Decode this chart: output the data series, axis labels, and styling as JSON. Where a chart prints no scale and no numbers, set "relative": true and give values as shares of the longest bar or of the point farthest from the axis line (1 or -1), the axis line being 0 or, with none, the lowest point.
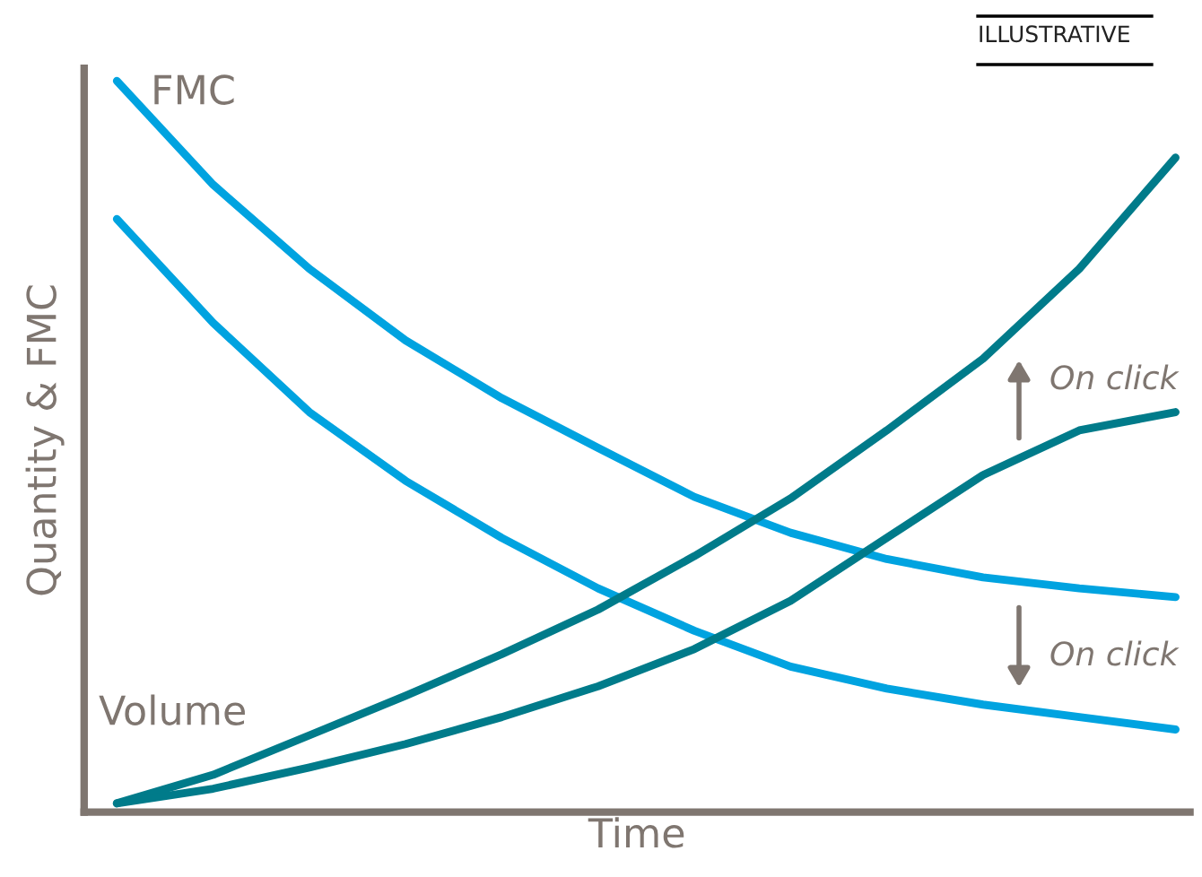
{
  "chart_data": {
    "type": "line",
    "relative": true,
    "xlabel": "Time",
    "ylabel": "Quantity & FMC",
    "categories": [
      null,
      null,
      null,
      null,
      null,
      null,
      null,
      null,
      null,
      null,
      null,
      null
    ],
    "series": [
      {
        "color": "#00a3e0",
        "values": [
          1.0,
          0.858,
          0.743,
          0.645,
          0.566,
          0.498,
          0.431,
          0.382,
          0.346,
          0.321,
          0.306,
          0.294
        ]
      },
      {
        "color": "#00a3e0",
        "values": [
          0.811,
          0.669,
          0.547,
          0.453,
          0.375,
          0.306,
          0.248,
          0.199,
          0.169,
          0.147,
          0.13,
          0.113
        ]
      },
      {
        "color": "#007b8a",
        "values": [
          0.012,
          0.051,
          0.105,
          0.159,
          0.216,
          0.277,
          0.35,
          0.429,
          0.522,
          0.62,
          0.743,
          0.895
        ]
      },
      {
        "color": "#007b8a",
        "values": [
          0.012,
          0.032,
          0.061,
          0.093,
          0.13,
          0.172,
          0.223,
          0.289,
          0.375,
          0.461,
          0.522,
          0.547
        ]
      }
    ],
    "annotations": [
      "FMC",
      "Volume",
      "On click",
      "On click",
      "ILLUSTRATIVE"
    ],
    "legend": false,
    "marker": "none",
    "line_style": "solid",
    "tick_labels": false
  }
}
